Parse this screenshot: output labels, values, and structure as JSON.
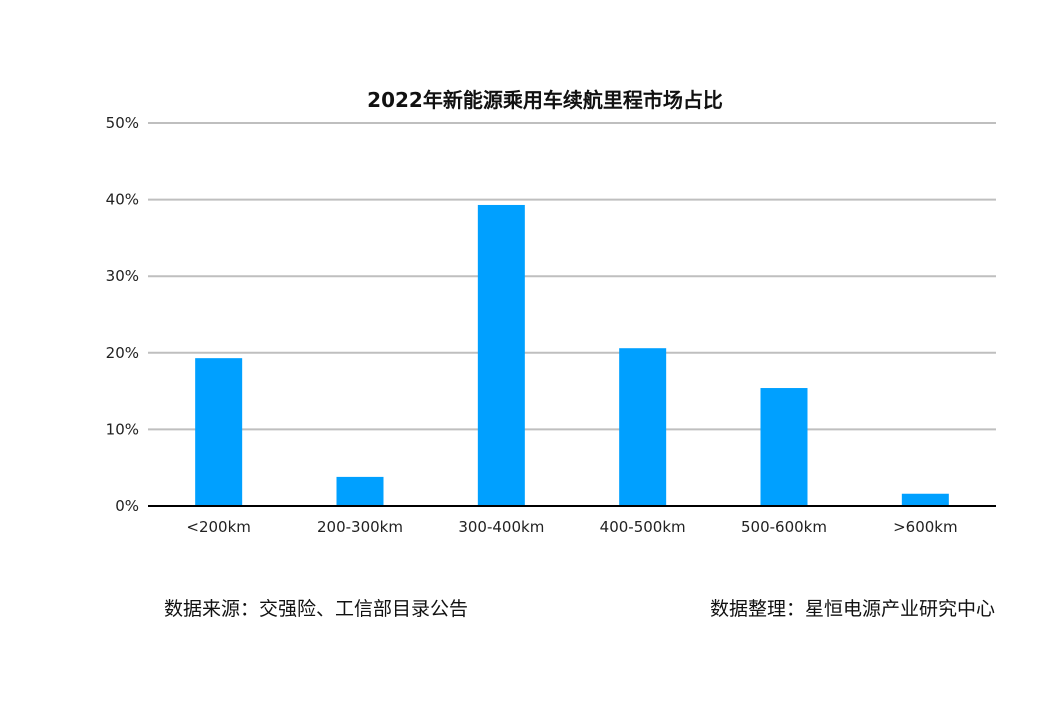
{
  "chart_data": {
    "type": "bar",
    "title": "2022年新能源乘用车续航里程市场占比",
    "categories": [
      "<200km",
      "200-300km",
      "300-400km",
      "400-500km",
      "500-600km",
      ">600km"
    ],
    "values": [
      19.3,
      3.8,
      39.3,
      20.6,
      15.4,
      1.6
    ],
    "unit": "%",
    "xlabel": "",
    "ylabel": "",
    "ylim": [
      0,
      50
    ],
    "yticks": [
      0,
      10,
      20,
      30,
      40,
      50
    ],
    "ytick_labels": [
      "0%",
      "10%",
      "20%",
      "30%",
      "40%",
      "50%"
    ],
    "grid": true,
    "legend": "none",
    "bar_color": "#00A0FF",
    "grid_color": "#BFBFBF",
    "axis_color": "#000000"
  },
  "notes": {
    "source": "数据来源：交强险、工信部目录公告",
    "compiled_by": "数据整理：星恒电源产业研究中心"
  }
}
